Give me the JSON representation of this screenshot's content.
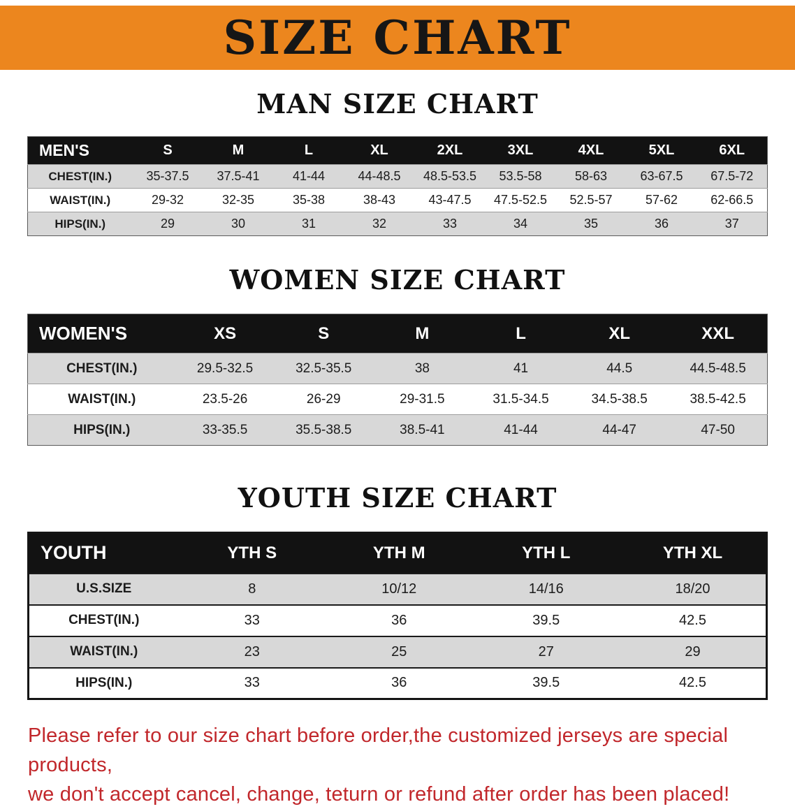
{
  "banner": {
    "title": "SIZE CHART"
  },
  "colors": {
    "banner_bg": "#EC861E",
    "header_row_bg": "#121212",
    "shaded_row_bg": "#D8D8D8",
    "notice_color": "#C1272B"
  },
  "sections": [
    {
      "heading": "MAN SIZE CHART",
      "table": {
        "header": [
          "MEN'S",
          "S",
          "M",
          "L",
          "XL",
          "2XL",
          "3XL",
          "4XL",
          "5XL",
          "6XL"
        ],
        "rows": [
          {
            "label": "CHEST(IN.)",
            "values": [
              "35-37.5",
              "37.5-41",
              "41-44",
              "44-48.5",
              "48.5-53.5",
              "53.5-58",
              "58-63",
              "63-67.5",
              "67.5-72"
            ]
          },
          {
            "label": "WAIST(IN.)",
            "values": [
              "29-32",
              "32-35",
              "35-38",
              "38-43",
              "43-47.5",
              "47.5-52.5",
              "52.5-57",
              "57-62",
              "62-66.5"
            ]
          },
          {
            "label": "HIPS(IN.)",
            "values": [
              "29",
              "30",
              "31",
              "32",
              "33",
              "34",
              "35",
              "36",
              "37"
            ]
          }
        ]
      }
    },
    {
      "heading": "WOMEN SIZE CHART",
      "table": {
        "header": [
          "WOMEN'S",
          "XS",
          "S",
          "M",
          "L",
          "XL",
          "XXL"
        ],
        "rows": [
          {
            "label": "CHEST(IN.)",
            "values": [
              "29.5-32.5",
              "32.5-35.5",
              "38",
              "41",
              "44.5",
              "44.5-48.5"
            ]
          },
          {
            "label": "WAIST(IN.)",
            "values": [
              "23.5-26",
              "26-29",
              "29-31.5",
              "31.5-34.5",
              "34.5-38.5",
              "38.5-42.5"
            ]
          },
          {
            "label": "HIPS(IN.)",
            "values": [
              "33-35.5",
              "35.5-38.5",
              "38.5-41",
              "41-44",
              "44-47",
              "47-50"
            ]
          }
        ]
      }
    },
    {
      "heading": "YOUTH SIZE CHART",
      "table": {
        "header": [
          "YOUTH",
          "YTH S",
          "YTH M",
          "YTH L",
          "YTH XL"
        ],
        "rows": [
          {
            "label": "U.S.SIZE",
            "values": [
              "8",
              "10/12",
              "14/16",
              "18/20"
            ]
          },
          {
            "label": "CHEST(IN.)",
            "values": [
              "33",
              "36",
              "39.5",
              "42.5"
            ]
          },
          {
            "label": "WAIST(IN.)",
            "values": [
              "23",
              "25",
              "27",
              "29"
            ]
          },
          {
            "label": "HIPS(IN.)",
            "values": [
              "33",
              "36",
              "39.5",
              "42.5"
            ]
          }
        ]
      }
    }
  ],
  "footer": {
    "lines": [
      "Please refer to our size chart before order,the customized jerseys are special products,",
      "we don't accept cancel, change, teturn or refund after order has been placed!"
    ]
  }
}
